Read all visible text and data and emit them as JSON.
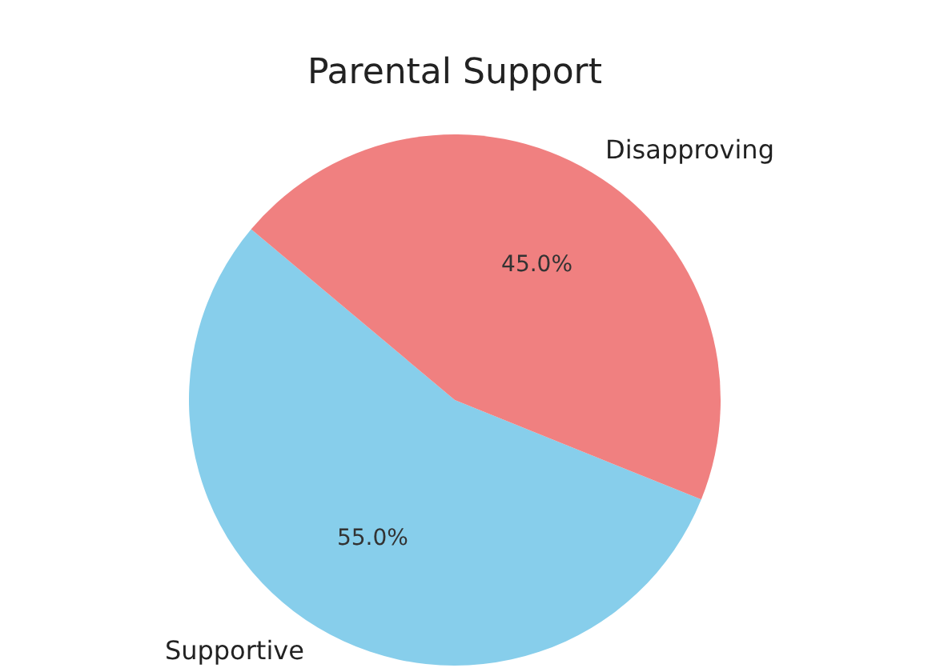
{
  "chart_data": {
    "type": "pie",
    "title": "Parental Support",
    "categories": [
      "Supportive",
      "Disapproving"
    ],
    "values": [
      55,
      45
    ],
    "colors": [
      "#87ceeb",
      "#f08080"
    ],
    "value_labels": [
      "55.0%",
      "45.0%"
    ]
  }
}
